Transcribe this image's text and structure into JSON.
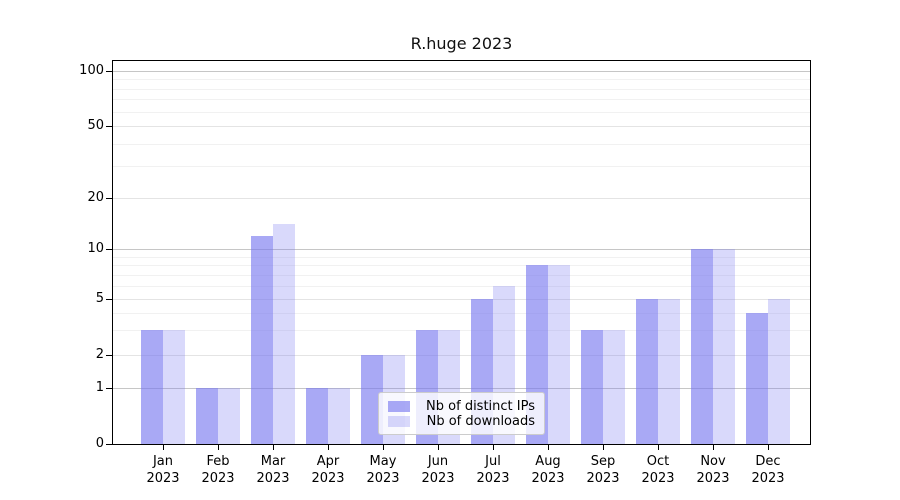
{
  "title": "R.huge 2023",
  "chart_data": {
    "type": "bar",
    "title": "R.huge 2023",
    "categories": [
      "Jan 2023",
      "Feb 2023",
      "Mar 2023",
      "Apr 2023",
      "May 2023",
      "Jun 2023",
      "Jul 2023",
      "Aug 2023",
      "Sep 2023",
      "Oct 2023",
      "Nov 2023",
      "Dec 2023"
    ],
    "series": [
      {
        "name": "Nb of distinct IPs",
        "color": "#7878f0",
        "alpha": 0.64,
        "rendered_color": "#a8a8f5",
        "values": [
          3,
          1,
          12,
          1,
          2,
          3,
          5,
          8,
          3,
          5,
          10,
          4
        ]
      },
      {
        "name": "Nb of downloads",
        "color": "#7878f0",
        "alpha": 0.28,
        "rendered_color": "#d9d9fb",
        "values": [
          3,
          1,
          14,
          1,
          2,
          3,
          6,
          8,
          3,
          5,
          10,
          5
        ]
      }
    ],
    "xlabel": "",
    "ylabel": "",
    "yscale": "log-like",
    "ylim": [
      0,
      110
    ],
    "yticks": [
      0,
      1,
      2,
      5,
      10,
      20,
      50,
      100
    ],
    "ytick_labels": [
      "0",
      "1",
      "2",
      "5",
      "10",
      "20",
      "50",
      "100"
    ],
    "major_gridlines": [
      1,
      10,
      100
    ],
    "mid_gridlines": [
      2,
      5,
      20,
      50
    ],
    "minor_gridlines": [
      3,
      4,
      6,
      7,
      8,
      9,
      30,
      40,
      60,
      70,
      80,
      90
    ],
    "grid": true,
    "legend_position": "lower center"
  },
  "colors": {
    "axis": "#000000",
    "grid_major": "#c6c6c6",
    "grid_mid": "#e4e4e4",
    "grid_minor": "#f1f1f1",
    "background": "#ffffff",
    "legend_border": "#cccccc"
  }
}
